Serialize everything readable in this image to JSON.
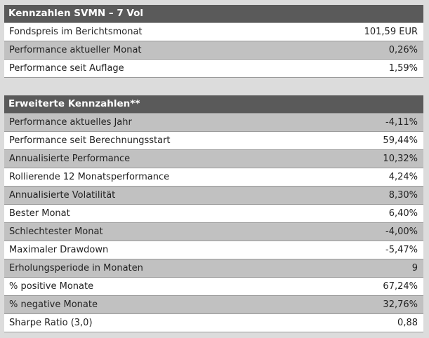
{
  "table1": {
    "title": "Kennzahlen SVMN – 7 Vol",
    "rows": [
      {
        "label": "Fondspreis im Berichtsmonat",
        "value": "101,59 EUR"
      },
      {
        "label": "Performance aktueller Monat",
        "value": "0,26%"
      },
      {
        "label": "Performance seit Auflage",
        "value": "1,59%"
      }
    ]
  },
  "table2": {
    "title": "Erweiterte Kennzahlen**",
    "rows": [
      {
        "label": "Performance aktuelles Jahr",
        "value": "-4,11%"
      },
      {
        "label": "Performance seit Berechnungsstart",
        "value": "59,44%"
      },
      {
        "label": "Annualisierte Performance",
        "value": "10,32%"
      },
      {
        "label": "Rollierende 12 Monatsperformance",
        "value": "4,24%"
      },
      {
        "label": "Annualisierte Volatilität",
        "value": "8,30%"
      },
      {
        "label": "Bester Monat",
        "value": "6,40%"
      },
      {
        "label": "Schlechtester Monat",
        "value": "-4,00%"
      },
      {
        "label": "Maximaler Drawdown",
        "value": "-5,47%"
      },
      {
        "label": "Erholungsperiode in Monaten",
        "value": "9"
      },
      {
        "label": "% positive Monate",
        "value": "67,24%"
      },
      {
        "label": "% negative Monate",
        "value": "32,76%"
      },
      {
        "label": "Sharpe Ratio (3,0)",
        "value": "0,88"
      }
    ]
  }
}
